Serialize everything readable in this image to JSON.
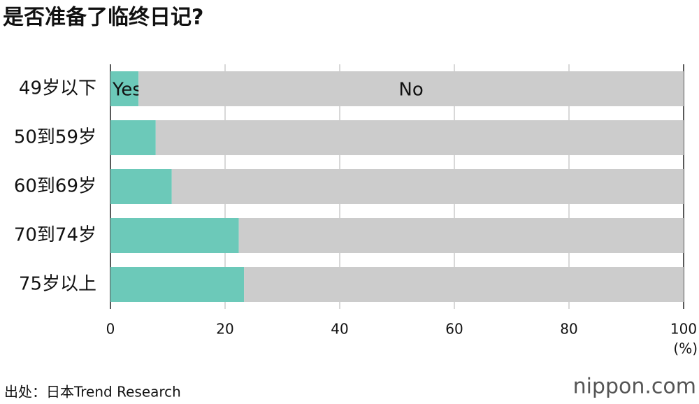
{
  "chart_data": {
    "type": "bar",
    "orientation": "horizontal",
    "stacked": true,
    "title": "是否准备了临终日记?",
    "categories": [
      "49岁以下",
      "50到59岁",
      "60到69岁",
      "70到74岁",
      "75岁以上"
    ],
    "series": [
      {
        "name": "Yes",
        "color": "#6cc9b9",
        "values": [
          4.9,
          7.9,
          10.7,
          22.4,
          23.3
        ]
      },
      {
        "name": "No",
        "color": "#cccccc",
        "values": [
          95.1,
          92.1,
          89.3,
          77.6,
          76.7
        ]
      }
    ],
    "xlim": [
      0,
      100
    ],
    "xticks": [
      0,
      20,
      40,
      60,
      80,
      100
    ],
    "xlabel": "(%)",
    "grid": true,
    "source": "出处：日本Trend Research",
    "brand": "nippon.com"
  }
}
